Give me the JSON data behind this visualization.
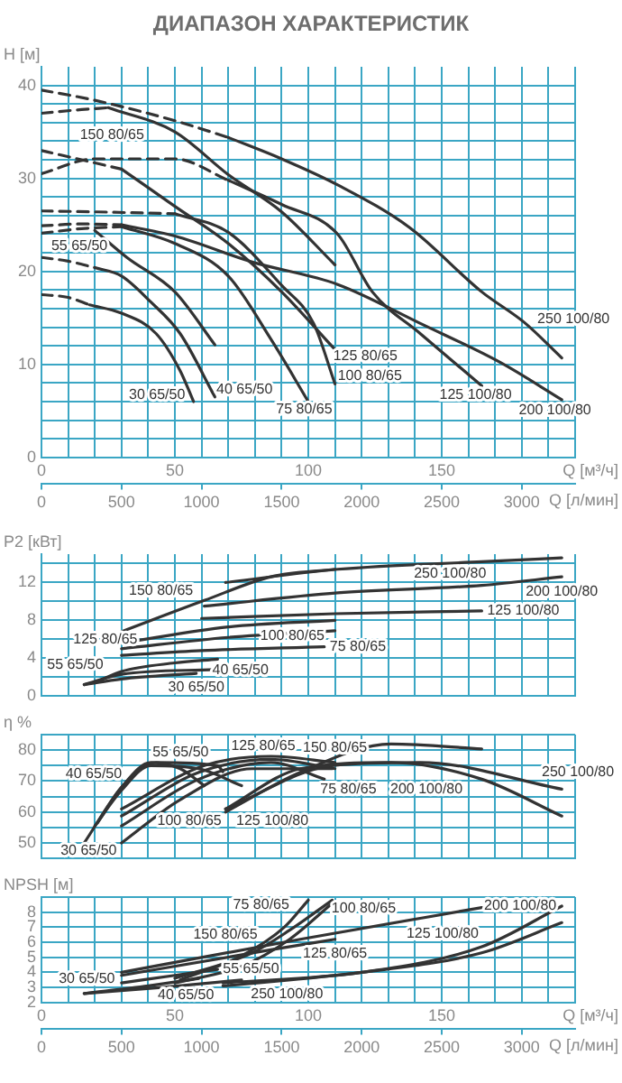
{
  "chart_data": [
    {
      "type": "line",
      "title": "ДИАПАЗОН ХАРАКТЕРИСТИК",
      "xlabel": "Q [м³/ч]",
      "x2label": "Q [л/мин]",
      "ylabel": "H [м]",
      "grid": true,
      "xlim": [
        0,
        200
      ],
      "xticks": [
        0,
        {
          "value": 10,
          "label": null
        },
        {
          "value": 20,
          "label": null
        },
        {
          "value": 30,
          "label": null
        },
        {
          "value": 40,
          "label": null
        },
        50,
        {
          "value": 60,
          "label": null
        },
        {
          "value": 70,
          "label": null
        },
        {
          "value": 80,
          "label": null
        },
        {
          "value": 90,
          "label": null
        },
        100,
        {
          "value": 110,
          "label": null
        },
        {
          "value": 120,
          "label": null
        },
        {
          "value": 130,
          "label": null
        },
        {
          "value": 140,
          "label": null
        },
        150,
        {
          "value": 160,
          "label": null
        },
        {
          "value": 170,
          "label": null
        },
        {
          "value": 180,
          "label": null
        },
        {
          "value": 190,
          "label": null
        },
        {
          "value": 200,
          "label": null
        }
      ],
      "x2lim": [
        0,
        3333
      ],
      "x2ticks": [
        0,
        500,
        1000,
        1500,
        2000,
        2500,
        3000
      ],
      "ylim": [
        0,
        42
      ],
      "yticks": [
        0,
        {
          "value": 2,
          "label": null
        },
        {
          "value": 4,
          "label": null
        },
        {
          "value": 6,
          "label": null
        },
        {
          "value": 8,
          "label": null
        },
        10,
        {
          "value": 12,
          "label": null
        },
        {
          "value": 14,
          "label": null
        },
        {
          "value": 16,
          "label": null
        },
        {
          "value": 18,
          "label": null
        },
        20,
        {
          "value": 22,
          "label": null
        },
        {
          "value": 24,
          "label": null
        },
        {
          "value": 26,
          "label": null
        },
        {
          "value": 28,
          "label": null
        },
        30,
        {
          "value": 32,
          "label": null
        },
        {
          "value": 34,
          "label": null
        },
        {
          "value": 36,
          "label": null
        },
        {
          "value": 38,
          "label": null
        },
        40
      ],
      "series": [
        {
          "name": "30 65/50",
          "color": "#333333",
          "x": [
            18,
            30,
            43,
            52,
            57
          ],
          "values": [
            16.4,
            15.5,
            13.3,
            9.3,
            6.0
          ]
        },
        {
          "name": "40 65/50",
          "color": "#333333",
          "x": [
            20,
            30,
            41,
            52,
            65
          ],
          "values": [
            20.4,
            19.5,
            16.7,
            13.3,
            6.5
          ]
        },
        {
          "name": "55 65/50",
          "color": "#333333",
          "x": [
            20,
            32,
            50,
            65
          ],
          "values": [
            24.4,
            21.5,
            17.8,
            12.1
          ]
        },
        {
          "name": "75 80/65",
          "color": "#333333",
          "x": [
            30,
            50,
            70,
            86,
            100
          ],
          "values": [
            24.8,
            23.0,
            19.5,
            12.7,
            6.0
          ]
        },
        {
          "name": "100 80/65",
          "color": "#333333",
          "x": [
            50,
            70,
            90,
            102,
            110
          ],
          "values": [
            26.2,
            24.2,
            18.5,
            14.4,
            7.9
          ]
        },
        {
          "name": "125 80/65",
          "color": "#333333",
          "x": [
            30,
            50,
            70,
            90,
            110
          ],
          "values": [
            31.0,
            27.0,
            23.0,
            17.8,
            11.6
          ]
        },
        {
          "name": "150 80/65",
          "color": "#333333",
          "x": [
            25,
            50,
            70,
            90,
            110
          ],
          "values": [
            37.6,
            35.0,
            30.4,
            26.4,
            20.7
          ]
        },
        {
          "name": "125 100/80",
          "color": "#333333",
          "x": [
            70,
            90,
            111,
            124,
            142,
            165
          ],
          "values": [
            29.8,
            27.2,
            24.0,
            17.8,
            13.3,
            7.7
          ]
        },
        {
          "name": "200 100/80",
          "color": "#333333",
          "x": [
            30,
            50,
            79,
            111,
            142,
            172,
            195
          ],
          "values": [
            25.0,
            23.8,
            21.0,
            18.6,
            14.4,
            10.2,
            6.2
          ]
        },
        {
          "name": "250 100/80",
          "color": "#333333",
          "x": [
            70,
            90,
            111,
            138,
            165,
            181,
            195
          ],
          "values": [
            34.4,
            32.1,
            29.3,
            24.7,
            17.8,
            14.5,
            10.7
          ]
        },
        {
          "color": "#333333",
          "line_style": "dashed",
          "x": [
            0,
            10,
            18
          ],
          "values": [
            17.5,
            17.2,
            16.4
          ]
        },
        {
          "color": "#333333",
          "line_style": "dashed",
          "x": [
            0,
            10,
            20
          ],
          "values": [
            21.5,
            21.1,
            20.4
          ]
        },
        {
          "color": "#333333",
          "line_style": "dashed",
          "x": [
            0,
            15,
            30
          ],
          "values": [
            24.1,
            24.6,
            24.8
          ]
        },
        {
          "color": "#333333",
          "line_style": "dashed",
          "x": [
            0,
            20,
            50
          ],
          "values": [
            26.5,
            26.4,
            26.2
          ]
        },
        {
          "color": "#333333",
          "line_style": "dashed",
          "x": [
            0,
            15,
            30
          ],
          "values": [
            24.9,
            25.1,
            25.0
          ]
        },
        {
          "color": "#333333",
          "line_style": "dashed",
          "x": [
            0,
            15,
            30
          ],
          "values": [
            33.0,
            32.0,
            31.0
          ]
        },
        {
          "color": "#333333",
          "line_style": "dashed",
          "x": [
            0,
            15,
            25
          ],
          "values": [
            37.0,
            37.4,
            37.6
          ]
        },
        {
          "color": "#333333",
          "line_style": "dashed",
          "x": [
            0,
            20,
            50,
            70
          ],
          "values": [
            30.5,
            32.1,
            32.1,
            29.8
          ]
        },
        {
          "color": "#333333",
          "line_style": "dashed",
          "x": [
            0,
            20,
            50,
            70
          ],
          "values": [
            39.5,
            38.4,
            36.2,
            34.4
          ]
        }
      ]
    },
    {
      "type": "line",
      "ylabel": "P2 [кВт]",
      "grid": true,
      "tick_labels": "y",
      "xlim": [
        0,
        200
      ],
      "xticks": [
        0,
        10,
        20,
        30,
        40,
        50,
        60,
        70,
        80,
        90,
        100,
        110,
        120,
        130,
        140,
        150,
        160,
        170,
        180,
        190,
        200
      ],
      "ylim": [
        0,
        15
      ],
      "yticks": [
        0,
        {
          "value": 2,
          "label": null
        },
        4,
        {
          "value": 6,
          "label": null
        },
        8,
        {
          "value": 10,
          "label": null
        },
        12,
        {
          "value": 14,
          "label": null
        }
      ],
      "series": [
        {
          "name": "30 65/50",
          "color": "#333333",
          "x": [
            16,
            30,
            58
          ],
          "values": [
            1.2,
            1.8,
            2.4
          ]
        },
        {
          "name": "40 65/50",
          "color": "#333333",
          "x": [
            16,
            30,
            65
          ],
          "values": [
            1.2,
            2.3,
            2.8
          ]
        },
        {
          "name": "55 65/50",
          "color": "#333333",
          "x": [
            20,
            30,
            50,
            66
          ],
          "values": [
            1.4,
            2.6,
            3.5,
            3.9
          ]
        },
        {
          "name": "75 80/65",
          "color": "#333333",
          "x": [
            30,
            60,
            106
          ],
          "values": [
            4.3,
            4.8,
            5.2
          ]
        },
        {
          "name": "100 80/65",
          "color": "#333333",
          "x": [
            30,
            70,
            110
          ],
          "values": [
            5.0,
            6.2,
            6.9
          ]
        },
        {
          "name": "125 80/65",
          "color": "#333333",
          "x": [
            30,
            70,
            110
          ],
          "values": [
            5.6,
            7.3,
            8.0
          ]
        },
        {
          "name": "150 80/65",
          "color": "#333333",
          "x": [
            30,
            61,
            86,
            110
          ],
          "values": [
            6.8,
            10.1,
            12.6,
            13.4
          ]
        },
        {
          "name": "125 100/80",
          "color": "#333333",
          "x": [
            60,
            110,
            165
          ],
          "values": [
            8.2,
            8.7,
            9.0
          ]
        },
        {
          "name": "200 100/80",
          "color": "#333333",
          "x": [
            61,
            111,
            165,
            195
          ],
          "values": [
            9.5,
            10.9,
            11.7,
            12.6
          ]
        },
        {
          "name": "250 100/80",
          "color": "#333333",
          "x": [
            69,
            111,
            165,
            195
          ],
          "values": [
            12.0,
            13.4,
            14.2,
            14.6
          ]
        }
      ]
    },
    {
      "type": "line",
      "ylabel": "η %",
      "grid": true,
      "tick_labels": "y",
      "xlim": [
        0,
        200
      ],
      "xticks": [
        0,
        10,
        20,
        30,
        40,
        50,
        60,
        70,
        80,
        90,
        100,
        110,
        120,
        130,
        140,
        150,
        160,
        170,
        180,
        190,
        200
      ],
      "ylim": [
        45,
        85
      ],
      "yticks": [
        {
          "value": 45,
          "label": null
        },
        50,
        {
          "value": 55,
          "label": null
        },
        60,
        {
          "value": 65,
          "label": null
        },
        70,
        {
          "value": 75,
          "label": null
        },
        80,
        {
          "value": 85,
          "label": null
        }
      ],
      "series": [
        {
          "name": "30 65/50",
          "color": "#333333",
          "x": [
            16,
            30,
            41,
            52,
            61
          ],
          "values": [
            50,
            68,
            76,
            74,
            68.5
          ]
        },
        {
          "name": "40 65/50",
          "color": "#333333",
          "x": [
            20,
            30,
            41,
            59,
            75
          ],
          "values": [
            55.5,
            67,
            75,
            74,
            68.5
          ]
        },
        {
          "name": "55 65/50",
          "color": "#333333",
          "x": [
            21,
            30,
            43,
            66,
            68
          ],
          "values": [
            56.5,
            68,
            76,
            75,
            73
          ]
        },
        {
          "name": "75 80/65",
          "color": "#333333",
          "x": [
            30,
            59,
            86,
            106
          ],
          "values": [
            55.5,
            70.6,
            76,
            70.6
          ]
        },
        {
          "name": "100 80/65",
          "color": "#333333",
          "x": [
            30,
            52,
            79,
            109
          ],
          "values": [
            50,
            64,
            74,
            74
          ]
        },
        {
          "name": "125 80/65",
          "color": "#333333",
          "x": [
            30,
            59,
            86,
            110
          ],
          "values": [
            58.7,
            72.8,
            77,
            74
          ]
        },
        {
          "name": "150 80/65",
          "color": "#333333",
          "x": [
            30,
            61,
            86,
            110
          ],
          "values": [
            61,
            75,
            78,
            76
          ]
        },
        {
          "name": "125 100/80",
          "color": "#333333",
          "x": [
            69,
            97,
            131,
            165
          ],
          "values": [
            60,
            72.8,
            82,
            80.4
          ]
        },
        {
          "name": "200 100/80",
          "color": "#333333",
          "x": [
            69,
            97,
            131,
            165,
            195
          ],
          "values": [
            61,
            74,
            76,
            70.6,
            58.7
          ]
        },
        {
          "name": "250 100/80",
          "color": "#333333",
          "x": [
            69,
            109,
            142,
            195
          ],
          "values": [
            61,
            75,
            76,
            67.4
          ]
        }
      ]
    },
    {
      "type": "line",
      "ylabel": "NPSH [м]",
      "xlabel": "Q [м³/ч]",
      "x2label": "Q [л/мин]",
      "grid": true,
      "xlim": [
        0,
        200
      ],
      "xticks": [
        0,
        {
          "value": 10,
          "label": null
        },
        {
          "value": 20,
          "label": null
        },
        {
          "value": 30,
          "label": null
        },
        {
          "value": 40,
          "label": null
        },
        50,
        {
          "value": 60,
          "label": null
        },
        {
          "value": 70,
          "label": null
        },
        {
          "value": 80,
          "label": null
        },
        {
          "value": 90,
          "label": null
        },
        100,
        {
          "value": 110,
          "label": null
        },
        {
          "value": 120,
          "label": null
        },
        {
          "value": 130,
          "label": null
        },
        {
          "value": 140,
          "label": null
        },
        150,
        {
          "value": 160,
          "label": null
        },
        {
          "value": 170,
          "label": null
        },
        {
          "value": 180,
          "label": null
        },
        {
          "value": 190,
          "label": null
        },
        {
          "value": 200,
          "label": null
        }
      ],
      "x2lim": [
        0,
        3333
      ],
      "x2ticks": [
        0,
        500,
        1000,
        1500,
        2000,
        2500,
        3000
      ],
      "ylim": [
        2,
        9
      ],
      "yticks": [
        2,
        3,
        4,
        5,
        6,
        7,
        8,
        {
          "value": 9,
          "label": null
        }
      ],
      "series": [
        {
          "name": "30 65/50",
          "color": "#333333",
          "x": [
            16,
            40,
            59
          ],
          "values": [
            2.6,
            3.1,
            3.6
          ]
        },
        {
          "name": "40 65/50",
          "color": "#333333",
          "x": [
            16,
            45,
            75
          ],
          "values": [
            2.6,
            3.0,
            3.5
          ]
        },
        {
          "name": "55 65/50",
          "color": "#333333",
          "x": [
            30,
            50,
            66
          ],
          "values": [
            3.3,
            3.8,
            4.2
          ]
        },
        {
          "name": "75 80/65",
          "color": "#333333",
          "x": [
            52,
            75,
            91,
            100
          ],
          "values": [
            3.5,
            5.1,
            7.0,
            8.8
          ]
        },
        {
          "name": "100 80/65",
          "color": "#333333",
          "x": [
            50,
            75,
            93,
            109
          ],
          "values": [
            3.3,
            4.4,
            6.2,
            8.6
          ]
        },
        {
          "name": "150 80/65",
          "color": "#333333",
          "x": [
            50,
            79,
            93,
            109
          ],
          "values": [
            3.6,
            5.3,
            6.8,
            8.8
          ]
        },
        {
          "name": "125 80/65",
          "color": "#333333",
          "x": [
            30,
            86,
            110
          ],
          "values": [
            3.8,
            5.5,
            6.2
          ]
        },
        {
          "name": "125 100/80",
          "color": "#333333",
          "x": [
            30,
            97,
            165
          ],
          "values": [
            4.0,
            6.2,
            8.3
          ]
        },
        {
          "name": "200 100/80",
          "color": "#333333",
          "x": [
            68,
            120,
            165,
            195
          ],
          "values": [
            3.3,
            4.0,
            5.7,
            8.4
          ]
        },
        {
          "name": "250 100/80",
          "color": "#333333",
          "x": [
            68,
            120,
            165,
            195
          ],
          "values": [
            3.1,
            4.0,
            5.3,
            7.3
          ]
        }
      ]
    }
  ]
}
